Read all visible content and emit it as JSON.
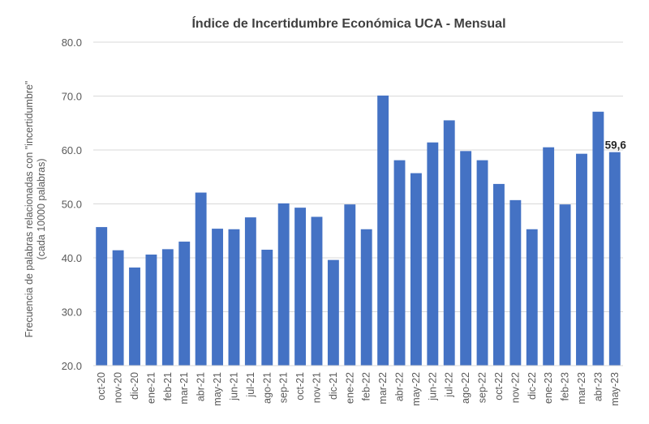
{
  "chart_data": {
    "type": "bar",
    "title": "Índice de Incertidumbre Económica UCA - Mensual",
    "ylabel_line1": "Frecuencia de palabras relacionadas con \"incertidumbre\"",
    "ylabel_line2": "(cada 10000 palabras)",
    "xlabel": "",
    "ylim": [
      20,
      80
    ],
    "yticks": [
      "20.0",
      "30.0",
      "40.0",
      "50.0",
      "60.0",
      "70.0",
      "80.0"
    ],
    "ytick_values": [
      20,
      30,
      40,
      50,
      60,
      70,
      80
    ],
    "grid": true,
    "bar_color": "#4472C4",
    "categories": [
      "oct-20",
      "nov-20",
      "dic-20",
      "ene-21",
      "feb-21",
      "mar-21",
      "abr-21",
      "may-21",
      "jun-21",
      "jul-21",
      "ago-21",
      "sep-21",
      "oct-21",
      "nov-21",
      "dic-21",
      "ene-22",
      "feb-22",
      "mar-22",
      "abr-22",
      "may-22",
      "jun-22",
      "jul-22",
      "ago-22",
      "sep-22",
      "oct-22",
      "nov-22",
      "dic-22",
      "ene-23",
      "feb-23",
      "mar-23",
      "abr-23",
      "may-23"
    ],
    "values": [
      45.7,
      41.4,
      38.2,
      40.6,
      41.6,
      43.0,
      52.1,
      45.4,
      45.3,
      47.5,
      41.5,
      50.1,
      49.3,
      47.6,
      39.6,
      49.9,
      45.3,
      70.1,
      58.1,
      55.7,
      61.4,
      65.5,
      59.8,
      58.1,
      53.7,
      50.7,
      45.3,
      60.5,
      49.9,
      59.3,
      67.1,
      59.6
    ],
    "data_labels": [
      {
        "index": 31,
        "text": "59,6"
      }
    ]
  }
}
